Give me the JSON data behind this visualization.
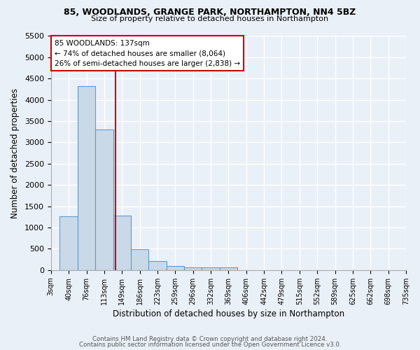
{
  "title1": "85, WOODLANDS, GRANGE PARK, NORTHAMPTON, NN4 5BZ",
  "title2": "Size of property relative to detached houses in Northampton",
  "xlabel": "Distribution of detached houses by size in Northampton",
  "ylabel": "Number of detached properties",
  "footer1": "Contains HM Land Registry data © Crown copyright and database right 2024.",
  "footer2": "Contains public sector information licensed under the Open Government Licence v3.0.",
  "categories": [
    "3sqm",
    "40sqm",
    "76sqm",
    "113sqm",
    "149sqm",
    "186sqm",
    "223sqm",
    "259sqm",
    "296sqm",
    "332sqm",
    "369sqm",
    "406sqm",
    "442sqm",
    "479sqm",
    "515sqm",
    "552sqm",
    "589sqm",
    "625sqm",
    "662sqm",
    "698sqm",
    "735sqm"
  ],
  "values": [
    0,
    1260,
    4330,
    3300,
    1280,
    490,
    215,
    95,
    70,
    60,
    55,
    0,
    0,
    0,
    0,
    0,
    0,
    0,
    0,
    0,
    0
  ],
  "bar_color": "#c9d9e8",
  "bar_edge_color": "#5b9bd5",
  "background_color": "#eaf0f8",
  "grid_color": "#ffffff",
  "annotation_line1": "85 WOODLANDS: 137sqm",
  "annotation_line2": "← 74% of detached houses are smaller (8,064)",
  "annotation_line3": "26% of semi-detached houses are larger (2,838) →",
  "annotation_box_color": "#ffffff",
  "annotation_border_color": "#cc0000",
  "vline_color": "#cc0000",
  "vline_position": 3.65,
  "ylim": [
    0,
    5500
  ],
  "yticks": [
    0,
    500,
    1000,
    1500,
    2000,
    2500,
    3000,
    3500,
    4000,
    4500,
    5000,
    5500
  ]
}
